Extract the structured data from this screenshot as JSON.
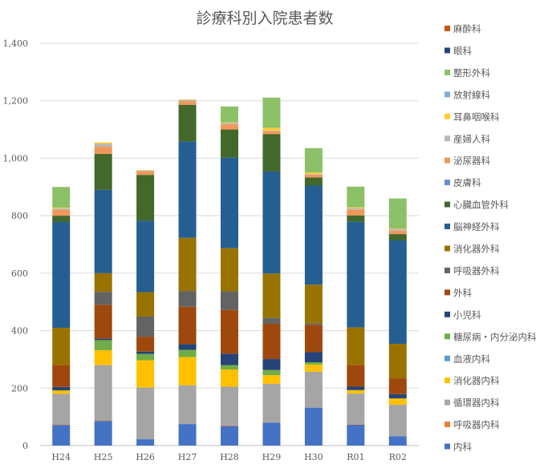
{
  "chart_data": {
    "type": "bar",
    "stacked": true,
    "title": "診療科別入院患者数",
    "xlabel": "",
    "ylabel": "",
    "ylim": [
      0,
      1400
    ],
    "ytick_labels": [
      "0",
      "200",
      "400",
      "600",
      "800",
      "1,000",
      "1,200",
      "1,400"
    ],
    "yticks": [
      0,
      200,
      400,
      600,
      800,
      1000,
      1200,
      1400
    ],
    "grid": true,
    "legend_position": "right",
    "categories": [
      "H24",
      "H25",
      "H26",
      "H27",
      "H28",
      "H29",
      "H30",
      "R01",
      "R02"
    ],
    "series": [
      {
        "name": "内科",
        "color": "#4472C4",
        "values": [
          72,
          86,
          22,
          75,
          68,
          80,
          132,
          73,
          32
        ]
      },
      {
        "name": "呼吸器内科",
        "color": "#ED7D31",
        "values": [
          2,
          2,
          0,
          0,
          2,
          0,
          0,
          2,
          0
        ]
      },
      {
        "name": "循環器内科",
        "color": "#A5A5A5",
        "values": [
          106,
          192,
          180,
          135,
          135,
          135,
          125,
          106,
          110
        ]
      },
      {
        "name": "消化器内科",
        "color": "#FFC000",
        "values": [
          12,
          52,
          95,
          98,
          60,
          30,
          25,
          12,
          22
        ]
      },
      {
        "name": "血液内科",
        "color": "#5B9BD5",
        "values": [
          0,
          0,
          0,
          0,
          0,
          0,
          0,
          0,
          0
        ]
      },
      {
        "name": "糖尿病・内分泌内科",
        "color": "#70AD47",
        "values": [
          0,
          35,
          22,
          25,
          15,
          18,
          8,
          0,
          0
        ]
      },
      {
        "name": "小児科",
        "color": "#264478",
        "values": [
          12,
          5,
          8,
          20,
          40,
          38,
          35,
          12,
          15
        ]
      },
      {
        "name": "外科",
        "color": "#9E480E",
        "values": [
          76,
          118,
          52,
          130,
          152,
          123,
          95,
          76,
          55
        ]
      },
      {
        "name": "呼吸器外科",
        "color": "#636363",
        "values": [
          0,
          45,
          70,
          55,
          65,
          20,
          5,
          0,
          0
        ]
      },
      {
        "name": "消化器外科",
        "color": "#997300",
        "values": [
          130,
          65,
          85,
          185,
          150,
          155,
          135,
          130,
          120
        ]
      },
      {
        "name": "脳神経外科",
        "color": "#255E91",
        "values": [
          368,
          290,
          248,
          335,
          315,
          355,
          345,
          368,
          360
        ]
      },
      {
        "name": "心臓血管外科",
        "color": "#43682B",
        "values": [
          22,
          125,
          160,
          128,
          98,
          130,
          28,
          22,
          22
        ]
      },
      {
        "name": "皮膚科",
        "color": "#698ED0",
        "values": [
          0,
          0,
          0,
          0,
          0,
          0,
          0,
          0,
          0
        ]
      },
      {
        "name": "泌尿器科",
        "color": "#F1975A",
        "values": [
          20,
          25,
          12,
          12,
          18,
          10,
          10,
          20,
          12
        ]
      },
      {
        "name": "産婦人科",
        "color": "#B7B7B7",
        "values": [
          5,
          10,
          3,
          5,
          5,
          2,
          2,
          5,
          5
        ]
      },
      {
        "name": "耳鼻咽喉科",
        "color": "#FFCD33",
        "values": [
          3,
          5,
          2,
          2,
          2,
          10,
          5,
          3,
          2
        ]
      },
      {
        "name": "放射線科",
        "color": "#7CAFDD",
        "values": [
          0,
          0,
          0,
          0,
          0,
          0,
          0,
          0,
          0
        ]
      },
      {
        "name": "整形外科",
        "color": "#8CC168",
        "values": [
          72,
          0,
          0,
          0,
          55,
          105,
          85,
          72,
          105
        ]
      },
      {
        "name": "眼科",
        "color": "#264478",
        "values": [
          0,
          0,
          0,
          0,
          0,
          0,
          0,
          0,
          0
        ]
      },
      {
        "name": "麻酔科",
        "color": "#C55A11",
        "values": [
          0,
          0,
          0,
          0,
          0,
          0,
          0,
          0,
          0
        ]
      }
    ]
  }
}
